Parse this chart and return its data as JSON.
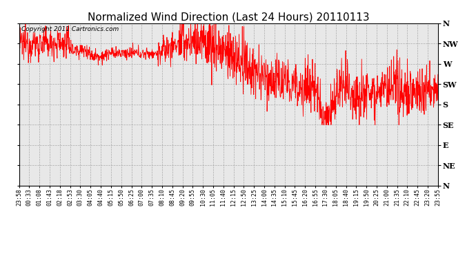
{
  "title": "Normalized Wind Direction (Last 24 Hours) 20110113",
  "copyright_text": "Copyright 2011 Cartronics.com",
  "line_color": "#ff0000",
  "background_color": "#ffffff",
  "plot_background": "#e8e8e8",
  "grid_color": "#999999",
  "ytick_labels": [
    "N",
    "NW",
    "W",
    "SW",
    "S",
    "SE",
    "E",
    "NE",
    "N"
  ],
  "ytick_values": [
    360,
    315,
    270,
    225,
    180,
    135,
    90,
    45,
    0
  ],
  "ylim": [
    0,
    360
  ],
  "xtick_labels": [
    "23:58",
    "00:33",
    "01:08",
    "01:43",
    "02:18",
    "02:53",
    "03:30",
    "04:05",
    "04:40",
    "05:15",
    "05:50",
    "06:25",
    "07:00",
    "07:35",
    "08:10",
    "08:45",
    "09:20",
    "09:55",
    "10:30",
    "11:05",
    "11:40",
    "12:15",
    "12:50",
    "13:25",
    "14:00",
    "14:35",
    "15:10",
    "15:45",
    "16:20",
    "16:55",
    "17:30",
    "18:05",
    "18:40",
    "19:15",
    "19:50",
    "20:25",
    "21:00",
    "21:35",
    "22:10",
    "22:45",
    "23:20",
    "23:55"
  ],
  "title_fontsize": 11,
  "tick_fontsize": 6,
  "copyright_fontsize": 6.5,
  "figwidth": 6.9,
  "figheight": 3.75,
  "dpi": 100
}
